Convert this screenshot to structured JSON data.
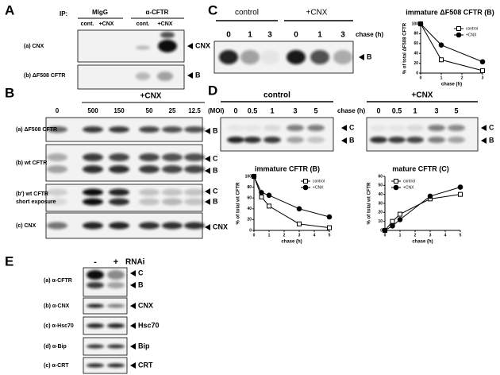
{
  "figure": {
    "A": {
      "letter": "A",
      "ip": "IP:",
      "groups": [
        "MIgG",
        "α-CFTR"
      ],
      "lanes": [
        "cont.",
        "+CNX",
        "cont.",
        "+CNX"
      ],
      "rows": [
        {
          "label": [
            "(a) CNX"
          ],
          "bands": [
            "CNX"
          ]
        },
        {
          "label": [
            "(b) ΔF508 CFTR"
          ],
          "bands": [
            "B"
          ]
        }
      ]
    },
    "B": {
      "letter": "B",
      "treatment": "+CNX",
      "lanes": [
        "0",
        "500",
        "150",
        "50",
        "25",
        "12.5"
      ],
      "unit": "(MOI)",
      "rows": [
        {
          "label": [
            "(a) ΔF508 CFTR"
          ],
          "bands": [
            "B"
          ]
        },
        {
          "label": [
            "(b) wt CFTR"
          ],
          "bands": [
            "C",
            "B"
          ]
        },
        {
          "label": [
            "(b') wt CFTR",
            "short exposure"
          ],
          "bands": [
            "C",
            "B"
          ]
        },
        {
          "label": [
            "(c) CNX"
          ],
          "bands": [
            "CNX"
          ]
        }
      ]
    },
    "C": {
      "letter": "C",
      "groups": [
        "control",
        "+CNX"
      ],
      "lanes": [
        "0",
        "1",
        "3",
        "0",
        "1",
        "3"
      ],
      "chase": "chase (h)",
      "bands": [
        "B"
      ]
    },
    "D": {
      "letter": "D",
      "chase": "chase (h)",
      "blots": [
        {
          "group": "control",
          "lanes": [
            "0",
            "0.5",
            "1",
            "3",
            "5"
          ],
          "bands": [
            "C",
            "B"
          ]
        },
        {
          "group": "+CNX",
          "lanes": [
            "0",
            "0.5",
            "1",
            "3",
            "5"
          ],
          "bands": [
            "C",
            "B"
          ]
        }
      ]
    },
    "E": {
      "letter": "E",
      "lanes": [
        "-",
        "+"
      ],
      "treatment": "RNAi",
      "rows": [
        {
          "label": "(a) α-CFTR",
          "bands": [
            "C",
            "B"
          ]
        },
        {
          "label": "(b) α-CNX",
          "bands": [
            "CNX"
          ]
        },
        {
          "label": "(c) α-Hsc70",
          "bands": [
            "Hsc70"
          ]
        },
        {
          "label": "(d) α-Bip",
          "bands": [
            "Bip"
          ]
        },
        {
          "label": "(c) α-CRT",
          "bands": [
            "CRT"
          ]
        }
      ]
    }
  },
  "chart_data": [
    {
      "type": "line",
      "title": "immature ΔF508 CFTR (B)",
      "xlabel": "chase (h)",
      "ylabel": "% of total ΔF508 CFTR",
      "x": [
        0,
        1,
        3
      ],
      "xlim": [
        0,
        3
      ],
      "xticks": [
        0,
        1,
        2,
        3
      ],
      "ylim": [
        0,
        100
      ],
      "yticks": [
        0,
        20,
        40,
        60,
        80,
        100
      ],
      "legend": "upper right",
      "series": [
        {
          "name": "control",
          "color": "#000000",
          "marker": "square-open",
          "values": [
            100,
            27,
            5
          ]
        },
        {
          "name": "+CNX",
          "color": "#000000",
          "marker": "circle-filled",
          "values": [
            100,
            57,
            23
          ]
        }
      ]
    },
    {
      "type": "line",
      "title": "immature CFTR (B)",
      "xlabel": "chase (h)",
      "ylabel": "% of total wt CFTR",
      "x": [
        0,
        0.5,
        1,
        3,
        5
      ],
      "xlim": [
        0,
        5
      ],
      "xticks": [
        0,
        1,
        2,
        3,
        4,
        5
      ],
      "ylim": [
        0,
        100
      ],
      "yticks": [
        0,
        20,
        40,
        60,
        80,
        100
      ],
      "legend": "upper right",
      "series": [
        {
          "name": "control",
          "color": "#000000",
          "marker": "square-open",
          "values": [
            100,
            62,
            45,
            12,
            5
          ]
        },
        {
          "name": "+CNX",
          "color": "#000000",
          "marker": "circle-filled",
          "values": [
            100,
            70,
            65,
            40,
            25
          ]
        }
      ]
    },
    {
      "type": "line",
      "title": "mature CFTR (C)",
      "xlabel": "chase (h)",
      "ylabel": "% of total wt CFTR",
      "x": [
        0,
        0.5,
        1,
        3,
        5
      ],
      "xlim": [
        0,
        5
      ],
      "xticks": [
        0,
        1,
        2,
        3,
        4,
        5
      ],
      "ylim": [
        0,
        60
      ],
      "yticks": [
        0,
        10,
        20,
        30,
        40,
        50,
        60
      ],
      "legend": "upper left",
      "series": [
        {
          "name": "control",
          "color": "#000000",
          "marker": "square-open",
          "values": [
            0,
            10,
            18,
            35,
            40
          ]
        },
        {
          "name": "+CNX",
          "color": "#000000",
          "marker": "circle-filled",
          "values": [
            0,
            5,
            12,
            38,
            48
          ]
        }
      ]
    }
  ]
}
